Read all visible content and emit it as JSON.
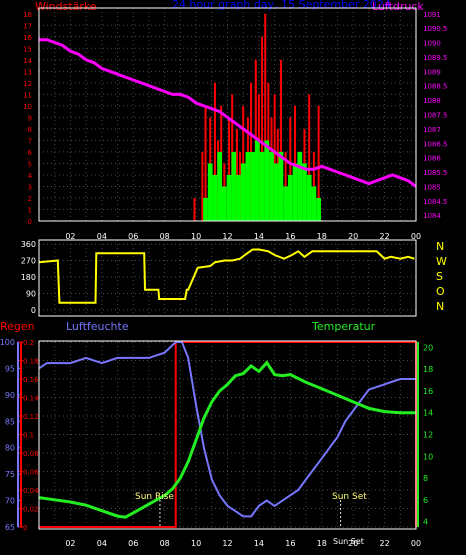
{
  "header": {
    "wind_label": "Windstärke",
    "title": "24 hour graph day, 15 September 2024",
    "pressure_label": "Luftdruck"
  },
  "colors": {
    "wind_red": "#ff0000",
    "wind_green": "#00ff00",
    "pressure": "#ff00ff",
    "direction": "#ffff00",
    "humidity": "#7777ff",
    "temperature": "#22ee22",
    "rain": "#ff0000",
    "title": "#0000ff",
    "grid": "#4a4a4a",
    "frame": "#ffffff"
  },
  "x_ticks": [
    "02",
    "04",
    "06",
    "08",
    "10",
    "12",
    "14",
    "16",
    "18",
    "20",
    "22",
    "00"
  ],
  "lower_panel": {
    "rain_label": "Regen",
    "humidity_label": "Luftfeuchte",
    "temperature_label": "Temperatur",
    "sun_rise_label": "Sun Rise",
    "sun_set_label": "Sun Set",
    "sun_set_bottom_label": "Sun Set"
  },
  "chart_data": [
    {
      "type": "line",
      "panel": "wind_and_pressure",
      "x_unit": "hour",
      "x_range": [
        0,
        24
      ],
      "wind_axis": {
        "label": "Windstärke",
        "ticks": [
          0,
          1,
          2,
          3,
          4,
          5,
          6,
          7,
          8,
          9,
          10,
          11,
          12,
          13,
          14,
          15,
          16,
          17,
          18
        ],
        "range": [
          0,
          18.5
        ]
      },
      "pressure_axis": {
        "label": "Luftdruck",
        "ticks": [
          1084,
          1084.5,
          1085,
          1085.5,
          1086,
          1086.5,
          1087,
          1087.5,
          1088,
          1088.5,
          1089,
          1089.5,
          1090,
          1090.5,
          1091
        ],
        "range": [
          1083.8,
          1091.2
        ]
      },
      "series": [
        {
          "name": "Luftdruck",
          "x": [
            0,
            0.5,
            1,
            1.5,
            2,
            2.5,
            3,
            3.5,
            4,
            4.5,
            5,
            5.5,
            6,
            6.5,
            7,
            7.5,
            8,
            8.5,
            9,
            9.5,
            10,
            10.5,
            11,
            11.5,
            12,
            12.5,
            13,
            13.5,
            14,
            14.5,
            15,
            15.5,
            16,
            16.5,
            17,
            17.5,
            18,
            18.5,
            19,
            19.5,
            20,
            20.5,
            21,
            21.5,
            22,
            22.5,
            23,
            23.5,
            24
          ],
          "values": [
            1090.1,
            1090.1,
            1090.0,
            1089.9,
            1089.7,
            1089.6,
            1089.4,
            1089.3,
            1089.1,
            1089.0,
            1088.9,
            1088.8,
            1088.7,
            1088.6,
            1088.5,
            1088.4,
            1088.3,
            1088.2,
            1088.2,
            1088.1,
            1087.9,
            1087.8,
            1087.7,
            1087.6,
            1087.4,
            1087.2,
            1087.0,
            1086.8,
            1086.6,
            1086.4,
            1086.2,
            1086.0,
            1085.8,
            1085.7,
            1085.6,
            1085.6,
            1085.7,
            1085.6,
            1085.5,
            1085.4,
            1085.3,
            1085.2,
            1085.1,
            1085.2,
            1085.3,
            1085.4,
            1085.3,
            1085.2,
            1085.0
          ]
        },
        {
          "name": "gust",
          "x": [
            9.9,
            10.4,
            10.6,
            10.9,
            11.2,
            11.4,
            11.6,
            11.8,
            12.1,
            12.3,
            12.6,
            12.8,
            13.0,
            13.3,
            13.5,
            13.8,
            14.0,
            14.2,
            14.4,
            14.6,
            14.8,
            15.0,
            15.2,
            15.4,
            15.7,
            16.0,
            16.3,
            16.6,
            16.9,
            17.2,
            17.5,
            17.8
          ],
          "values": [
            2,
            6,
            10,
            9,
            12,
            7,
            10,
            5,
            9,
            11,
            8,
            6,
            10,
            9,
            12,
            14,
            11,
            16,
            18,
            12,
            9,
            11,
            8,
            14,
            6,
            9,
            10,
            6,
            8,
            11,
            6,
            10
          ]
        },
        {
          "name": "wind",
          "x": [
            10.6,
            10.9,
            11.2,
            11.5,
            11.8,
            12.1,
            12.4,
            12.7,
            13.0,
            13.3,
            13.6,
            13.9,
            14.2,
            14.5,
            14.8,
            15.1,
            15.4,
            15.7,
            16.0,
            16.3,
            16.6,
            16.9,
            17.2,
            17.5,
            17.8
          ],
          "values": [
            2,
            5,
            4,
            6,
            3,
            4,
            6,
            4,
            5,
            6,
            6,
            7,
            6,
            7,
            6,
            5,
            6,
            3,
            4,
            5,
            6,
            5,
            4,
            3,
            2
          ]
        }
      ]
    },
    {
      "type": "line",
      "panel": "wind_direction",
      "y_axis": {
        "ticks": [
          0,
          90,
          180,
          270,
          360
        ],
        "range": [
          0,
          360
        ]
      },
      "direction_labels": [
        "N",
        "W",
        "S",
        "O",
        "N"
      ],
      "series": [
        {
          "name": "direction",
          "x": [
            0,
            1.2,
            1.3,
            3.6,
            3.65,
            6.7,
            6.75,
            7.6,
            7.65,
            9.2,
            9.25,
            9.3,
            9.4,
            9.5,
            10.1,
            10.9,
            11.2,
            11.8,
            12.3,
            12.8,
            13.1,
            13.6,
            14.0,
            14.6,
            15.0,
            15.6,
            16.1,
            16.5,
            16.9,
            17.4,
            18.0,
            18.6,
            19.4,
            20.1,
            20.9,
            21.5,
            22.0,
            22.4,
            23.0,
            23.5,
            23.9
          ],
          "values": [
            260,
            270,
            40,
            40,
            310,
            310,
            110,
            110,
            60,
            60,
            60,
            60,
            110,
            110,
            230,
            240,
            260,
            270,
            270,
            280,
            300,
            330,
            330,
            320,
            300,
            280,
            300,
            320,
            290,
            320,
            320,
            320,
            320,
            320,
            320,
            320,
            280,
            290,
            280,
            290,
            280
          ]
        }
      ]
    },
    {
      "type": "line",
      "panel": "rain_humidity_temperature",
      "rain_axis": {
        "label": "Regen",
        "ticks": [
          0,
          0.02,
          0.04,
          0.06,
          0.08,
          0.1,
          0.12,
          0.14,
          0.16,
          0.18,
          0.2
        ],
        "range": [
          0,
          0.2
        ]
      },
      "humidity_axis": {
        "label": "Luftfeuchte",
        "ticks": [
          65,
          70,
          75,
          80,
          85,
          90,
          95,
          100
        ],
        "range": [
          65,
          100
        ]
      },
      "temperature_axis": {
        "label": "Temperatur",
        "ticks": [
          4,
          6,
          8,
          10,
          12,
          14,
          16,
          18,
          20
        ],
        "range": [
          3.5,
          20.5
        ]
      },
      "series": [
        {
          "name": "Regen",
          "x": [
            0,
            8.7,
            8.7,
            24,
            24
          ],
          "values": [
            0,
            0,
            0.2,
            0.2,
            0
          ]
        },
        {
          "name": "Luftfeuchte",
          "x": [
            0,
            0.5,
            1,
            2,
            3,
            4,
            5,
            6,
            7,
            8,
            8.7,
            9.1,
            9.5,
            10,
            10.5,
            11,
            11.5,
            12,
            12.5,
            13,
            13.5,
            14,
            14.5,
            15,
            15.5,
            16,
            16.5,
            17,
            17.5,
            18,
            18.5,
            19,
            19.5,
            20,
            20.5,
            21,
            22,
            23,
            24
          ],
          "values": [
            95,
            96,
            96,
            96,
            97,
            96,
            97,
            97,
            97,
            98,
            100,
            100,
            97,
            88,
            80,
            74,
            71,
            69,
            68,
            67,
            67,
            69,
            70,
            69,
            70,
            71,
            72,
            74,
            76,
            78,
            80,
            82,
            85,
            87,
            89,
            91,
            92,
            93,
            93
          ]
        },
        {
          "name": "Temperatur",
          "x": [
            0,
            1,
            2,
            3,
            4,
            5,
            5.5,
            6,
            7,
            8,
            8.5,
            9,
            9.5,
            10,
            10.5,
            11,
            11.5,
            12,
            12.5,
            13,
            13.5,
            14,
            14.5,
            15,
            15.5,
            16,
            17,
            18,
            19,
            20,
            21,
            22,
            23,
            24
          ],
          "values": [
            6.2,
            6.0,
            5.8,
            5.5,
            5.0,
            4.5,
            4.4,
            4.8,
            5.6,
            6.4,
            7.0,
            8.0,
            9.5,
            11.5,
            13.5,
            15.0,
            16.0,
            16.6,
            17.4,
            17.6,
            18.3,
            17.8,
            18.6,
            17.5,
            17.4,
            17.5,
            16.8,
            16.2,
            15.6,
            15.0,
            14.4,
            14.1,
            14.0,
            14.0
          ]
        }
      ],
      "markers": [
        {
          "label": "Sun Rise",
          "x": 7.7
        },
        {
          "label": "Sun Set",
          "x": 19.2
        }
      ]
    }
  ]
}
